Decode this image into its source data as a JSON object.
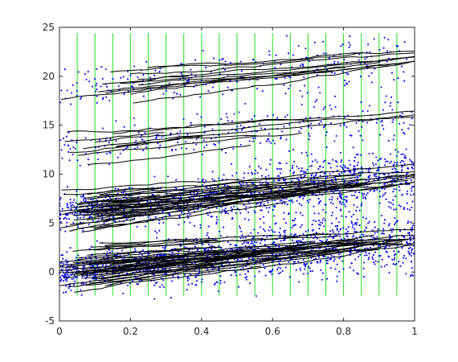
{
  "chart_data": {
    "type": "scatter",
    "title": "",
    "xlabel": "",
    "ylabel": "",
    "xlim": [
      0,
      1
    ],
    "ylim": [
      -5,
      25
    ],
    "x_ticks": [
      "0",
      "0.2",
      "0.4",
      "0.6",
      "0.8",
      "1"
    ],
    "y_ticks": [
      "-5",
      "0",
      "5",
      "10",
      "15",
      "20",
      "25"
    ],
    "grid": false,
    "legend": "none",
    "colors": {
      "points": "#0000ff",
      "tracks": "#000000",
      "markers": "#33dd33",
      "axes": "#262626"
    },
    "vertical_markers": {
      "x": [
        0.05,
        0.1,
        0.15,
        0.2,
        0.25,
        0.3,
        0.35,
        0.4,
        0.45,
        0.5,
        0.55,
        0.6,
        0.65,
        0.7,
        0.75,
        0.8,
        0.85,
        0.9,
        0.95
      ],
      "y_range": [
        -2.4,
        24.4
      ]
    },
    "bands": [
      {
        "start": 0.0,
        "end": 3.5,
        "spread": 1.3,
        "points": 1500,
        "tracks": 45,
        "track_start": [
          0.0,
          0.15
        ]
      },
      {
        "start": 6.0,
        "end": 10.0,
        "spread": 1.2,
        "points": 1300,
        "tracks": 40,
        "track_start": [
          0.0,
          0.15
        ]
      },
      {
        "start": 12.5,
        "end": 16.0,
        "spread": 1.1,
        "points": 280,
        "tracks": 10,
        "track_start": [
          0.0,
          0.25
        ]
      },
      {
        "start": 18.5,
        "end": 22.0,
        "spread": 1.1,
        "points": 280,
        "tracks": 12,
        "track_start": [
          0.0,
          0.25
        ]
      }
    ]
  }
}
